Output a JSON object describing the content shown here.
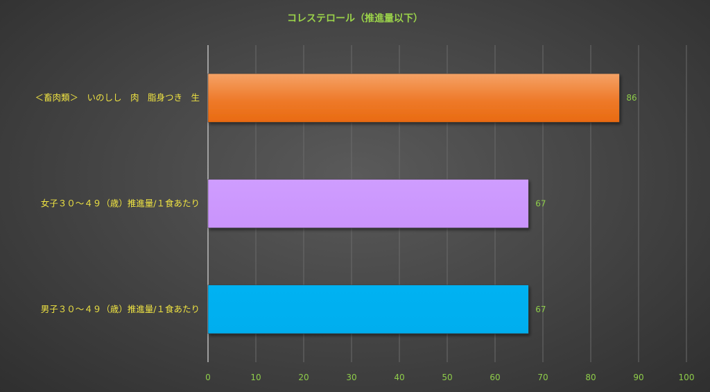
{
  "chart_data": {
    "type": "bar",
    "orientation": "horizontal",
    "title": "コレステロール（推進量以下）",
    "xlabel": "",
    "ylabel": "",
    "categories": [
      "＜畜肉類＞　いのしし　肉　脂身つき　生",
      "女子３０～４９（歳）推進量/１食あたり",
      "男子３０～４９（歳）推進量/１食あたり"
    ],
    "values": [
      86,
      67,
      67
    ],
    "colors": [
      "#ee7422",
      "#cc99ff",
      "#00b0f0"
    ],
    "xlim": [
      0,
      100
    ],
    "ticks": [
      "0",
      "10",
      "20",
      "30",
      "40",
      "50",
      "60",
      "70",
      "80",
      "90",
      "100"
    ],
    "grid": true,
    "legend": "none",
    "data_labels": true
  }
}
